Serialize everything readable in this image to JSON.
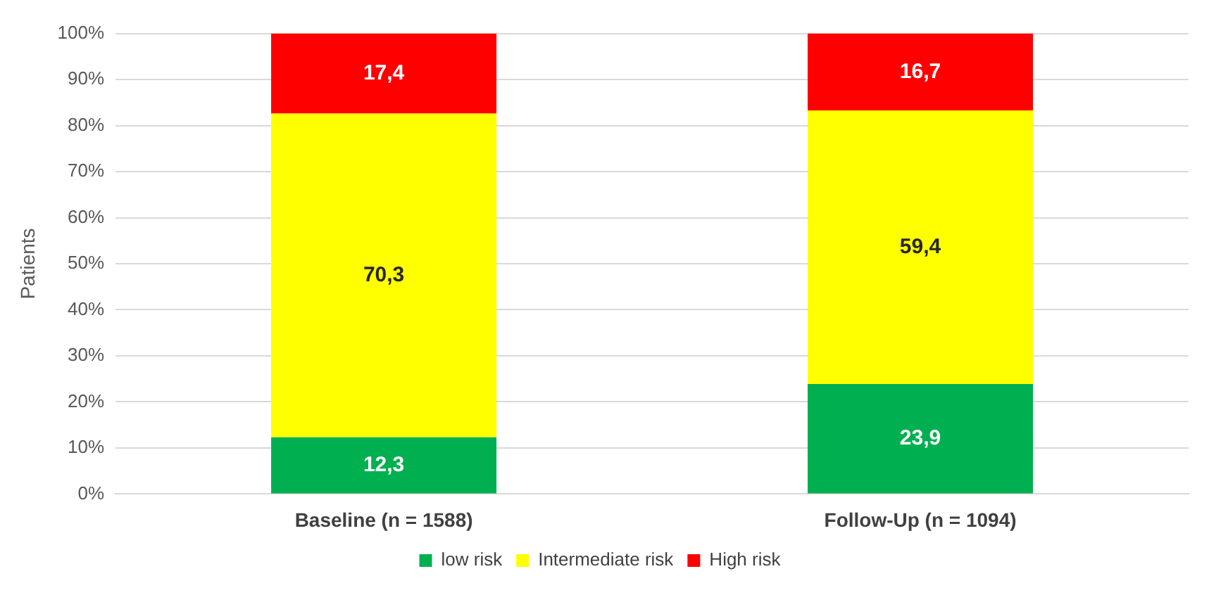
{
  "chart_data": {
    "type": "bar",
    "stacked": true,
    "ylabel": "Patients",
    "categories": [
      "Baseline (n = 1588)",
      "Follow-Up (n = 1094)"
    ],
    "series": [
      {
        "name": "low risk",
        "color": "#00b050",
        "values": [
          12.3,
          23.9
        ],
        "value_labels": [
          "12,3",
          "23,9"
        ]
      },
      {
        "name": "Intermediate risk",
        "color": "#ffff00",
        "values": [
          70.3,
          59.4
        ],
        "value_labels": [
          "70,3",
          "59,4"
        ]
      },
      {
        "name": "High risk",
        "color": "#ff0000",
        "values": [
          17.4,
          16.7
        ],
        "value_labels": [
          "17,4",
          "16,7"
        ]
      }
    ],
    "ylim": [
      0,
      100
    ],
    "yticks": [
      {
        "value": 0,
        "label": "0%"
      },
      {
        "value": 10,
        "label": "10%"
      },
      {
        "value": 20,
        "label": "20%"
      },
      {
        "value": 30,
        "label": "30%"
      },
      {
        "value": 40,
        "label": "40%"
      },
      {
        "value": 50,
        "label": "50%"
      },
      {
        "value": 60,
        "label": "60%"
      },
      {
        "value": 70,
        "label": "70%"
      },
      {
        "value": 80,
        "label": "80%"
      },
      {
        "value": 90,
        "label": "90%"
      },
      {
        "value": 100,
        "label": "100%"
      }
    ],
    "grid": "y",
    "legend": "bottom"
  }
}
